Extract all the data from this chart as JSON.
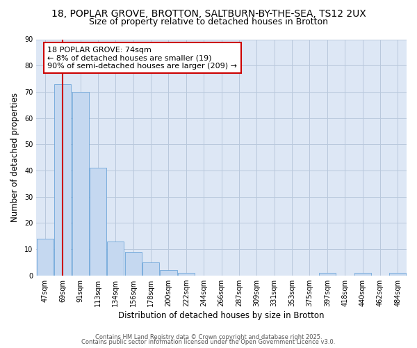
{
  "title_line1": "18, POPLAR GROVE, BROTTON, SALTBURN-BY-THE-SEA, TS12 2UX",
  "title_line2": "Size of property relative to detached houses in Brotton",
  "xlabel": "Distribution of detached houses by size in Brotton",
  "ylabel": "Number of detached properties",
  "bar_labels": [
    "47sqm",
    "69sqm",
    "91sqm",
    "113sqm",
    "134sqm",
    "156sqm",
    "178sqm",
    "200sqm",
    "222sqm",
    "244sqm",
    "266sqm",
    "287sqm",
    "309sqm",
    "331sqm",
    "353sqm",
    "375sqm",
    "397sqm",
    "418sqm",
    "440sqm",
    "462sqm",
    "484sqm"
  ],
  "bar_values": [
    14,
    73,
    70,
    41,
    13,
    9,
    5,
    2,
    1,
    0,
    0,
    0,
    0,
    0,
    0,
    0,
    1,
    0,
    1,
    0,
    1
  ],
  "bar_color": "#c5d8f0",
  "bar_edge_color": "#5b9bd5",
  "vline_color": "#cc0000",
  "annotation_text": "18 POPLAR GROVE: 74sqm\n← 8% of detached houses are smaller (19)\n90% of semi-detached houses are larger (209) →",
  "annotation_box_color": "#ffffff",
  "annotation_box_edge": "#cc0000",
  "ylim": [
    0,
    90
  ],
  "yticks": [
    0,
    10,
    20,
    30,
    40,
    50,
    60,
    70,
    80,
    90
  ],
  "plot_bg_color": "#dde7f5",
  "background_color": "#ffffff",
  "grid_color": "#b8c8dc",
  "footer_line1": "Contains HM Land Registry data © Crown copyright and database right 2025.",
  "footer_line2": "Contains public sector information licensed under the Open Government Licence v3.0.",
  "title_fontsize": 10,
  "subtitle_fontsize": 9,
  "axis_label_fontsize": 8.5,
  "tick_fontsize": 7,
  "annotation_fontsize": 8,
  "footer_fontsize": 6
}
